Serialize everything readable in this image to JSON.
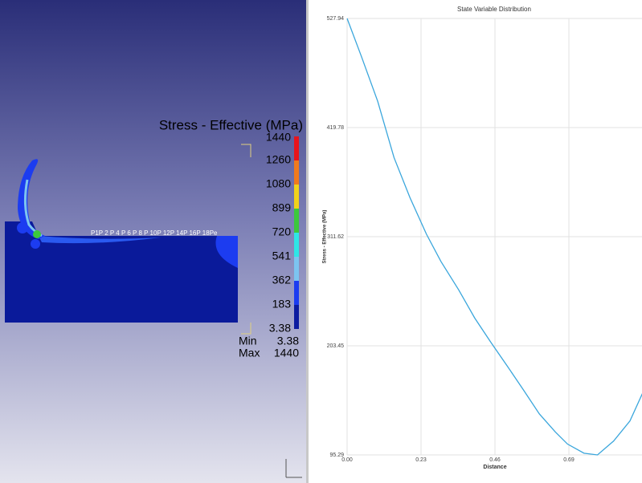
{
  "viewport": {
    "legend": {
      "title": "Stress - Effective (MPa)",
      "levels": [
        1440,
        1260,
        1080,
        899,
        720,
        541,
        362,
        183,
        3.38
      ],
      "colors": [
        "#e8141c",
        "#f07a1c",
        "#f0d21c",
        "#3cc83c",
        "#2ee6e6",
        "#7cc4f0",
        "#1c3cf0",
        "#0c1ca0",
        "#060a50"
      ],
      "min_label": "Min",
      "min": 3.38,
      "max_label": "Max",
      "max": 1440
    },
    "point_labels": "P1P 2 P 4 P 6 P 8 P 10P 12P 14P 16P 18Pe"
  },
  "chart_data": {
    "type": "line",
    "title": "State Variable Distribution",
    "x_label": "Distance",
    "y_label": "Stress - Effective (MPa)",
    "x": [
      0,
      0.045,
      0.095,
      0.146,
      0.196,
      0.247,
      0.292,
      0.347,
      0.397,
      0.447,
      0.497,
      0.548,
      0.598,
      0.648,
      0.686,
      0.737,
      0.779,
      0.829,
      0.88,
      0.92
    ],
    "series": [
      {
        "name": "Stress - Effective (MPa)",
        "color": "#3aa6dc",
        "values": [
          527.94,
          489.8,
          446,
          390,
          350,
          314,
          287,
          259,
          231,
          207,
          184,
          160,
          136,
          118,
          106,
          97,
          95.3,
          109,
          129,
          157
        ]
      }
    ],
    "xlim": [
      0,
      0.92
    ],
    "ylim": [
      95.29,
      527.94
    ],
    "xticks": [
      {
        "value": 0,
        "label": "0.00"
      },
      0.23,
      0.46,
      0.69
    ],
    "yticks": [
      95.29,
      203.45,
      311.62,
      419.78,
      527.94
    ],
    "grid": true
  }
}
